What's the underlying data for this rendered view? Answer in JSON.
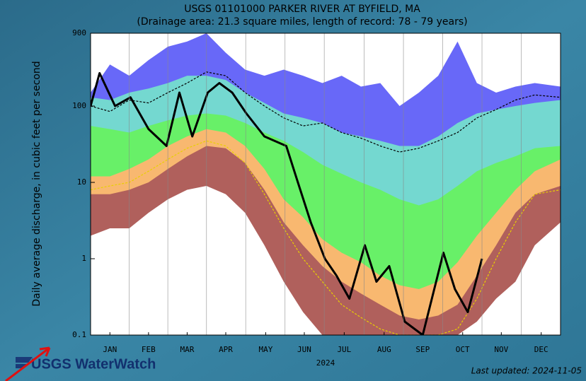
{
  "chart_data": {
    "type": "band",
    "title": "USGS 01101000 PARKER RIVER AT BYFIELD, MA",
    "subtitle": "(Drainage area: 21.3 square miles, length of record: 78 - 79 years)",
    "y_label": "Daily average discharge, in cubic feet per second",
    "x_label": "2024",
    "brand": "USGS WaterWatch",
    "updated": "Last updated: 2024-11-05",
    "log": true,
    "grid": true,
    "xlim": [
      1,
      366
    ],
    "xticks": [
      {
        "value": 16,
        "label": "JAN"
      },
      {
        "value": 46,
        "label": "FEB"
      },
      {
        "value": 76,
        "label": "MAR"
      },
      {
        "value": 106,
        "label": "APR"
      },
      {
        "value": 137,
        "label": "MAY"
      },
      {
        "value": 167,
        "label": "JUN"
      },
      {
        "value": 198,
        "label": "JUL"
      },
      {
        "value": 229,
        "label": "AUG"
      },
      {
        "value": 259,
        "label": "SEP"
      },
      {
        "value": 290,
        "label": "OCT"
      },
      {
        "value": 320,
        "label": "NOV"
      },
      {
        "value": 351,
        "label": "DEC"
      }
    ],
    "ylim": [
      0.1,
      900
    ],
    "yticks": [
      0.1,
      1,
      10,
      100,
      900
    ],
    "x": [
      1,
      16,
      31,
      46,
      61,
      76,
      91,
      106,
      121,
      136,
      151,
      166,
      181,
      196,
      211,
      226,
      241,
      256,
      271,
      286,
      301,
      316,
      331,
      346,
      366
    ],
    "series": [
      {
        "style": "area",
        "color": "#6868f8",
        "values": [
          150,
          350,
          250,
          400,
          600,
          700,
          900,
          500,
          300,
          250,
          300,
          250,
          200,
          250,
          180,
          200,
          100,
          150,
          250,
          700,
          200,
          150,
          180,
          200,
          180
        ]
      },
      {
        "style": "area",
        "color": "#74d8d0",
        "values": [
          130,
          120,
          150,
          170,
          200,
          250,
          250,
          220,
          150,
          110,
          80,
          70,
          60,
          45,
          40,
          35,
          30,
          30,
          40,
          60,
          80,
          90,
          100,
          110,
          120
        ]
      },
      {
        "style": "area",
        "color": "#68f068",
        "values": [
          55,
          50,
          45,
          55,
          65,
          75,
          80,
          75,
          60,
          45,
          35,
          25,
          17,
          13,
          10,
          8,
          6,
          5,
          6,
          9,
          14,
          18,
          22,
          28,
          30
        ]
      },
      {
        "style": "area",
        "color": "#f8b870",
        "values": [
          12,
          12,
          15,
          20,
          30,
          40,
          50,
          45,
          30,
          15,
          6,
          3.5,
          1.8,
          1.2,
          0.9,
          0.6,
          0.45,
          0.4,
          0.5,
          0.9,
          2,
          4,
          8,
          14,
          20
        ]
      },
      {
        "style": "area",
        "color": "#b0605c",
        "values": [
          7,
          7,
          8,
          10,
          15,
          22,
          30,
          28,
          18,
          8,
          3,
          1.5,
          0.8,
          0.5,
          0.35,
          0.25,
          0.18,
          0.16,
          0.18,
          0.25,
          0.6,
          1.5,
          4,
          7,
          9
        ]
      },
      {
        "style": "area",
        "color": "#ffffff",
        "values": [
          2,
          2.5,
          2.5,
          4,
          6,
          8,
          9,
          7,
          4,
          1.5,
          0.5,
          0.2,
          0.1,
          0.1,
          0.1,
          0.1,
          0.1,
          0.1,
          0.1,
          0.1,
          0.15,
          0.3,
          0.5,
          1.5,
          3
        ]
      },
      {
        "style": "dash",
        "color": "#e8d000",
        "values": [
          8,
          9,
          10,
          14,
          20,
          28,
          35,
          30,
          18,
          7,
          2.5,
          1,
          0.5,
          0.25,
          0.17,
          0.12,
          0.1,
          0.1,
          0.1,
          0.12,
          0.3,
          1,
          3,
          7,
          8
        ]
      },
      {
        "style": "dash",
        "color": "#000000",
        "values": [
          100,
          85,
          120,
          110,
          150,
          200,
          280,
          250,
          150,
          100,
          70,
          55,
          60,
          45,
          38,
          30,
          25,
          28,
          35,
          45,
          70,
          90,
          120,
          140,
          130
        ]
      },
      {
        "style": "line",
        "color": "#000000",
        "x": [
          1,
          8,
          20,
          32,
          46,
          60,
          70,
          80,
          92,
          101,
          111,
          122,
          136,
          153,
          162,
          172,
          183,
          192,
          202,
          214,
          223,
          233,
          245,
          259,
          275,
          284,
          294,
          305
        ],
        "values": [
          100,
          270,
          100,
          130,
          50,
          30,
          150,
          40,
          150,
          200,
          150,
          80,
          40,
          30,
          10,
          3,
          1,
          0.6,
          0.3,
          1.5,
          0.5,
          0.8,
          0.15,
          0.1,
          1.2,
          0.4,
          0.2,
          1
        ]
      }
    ]
  }
}
